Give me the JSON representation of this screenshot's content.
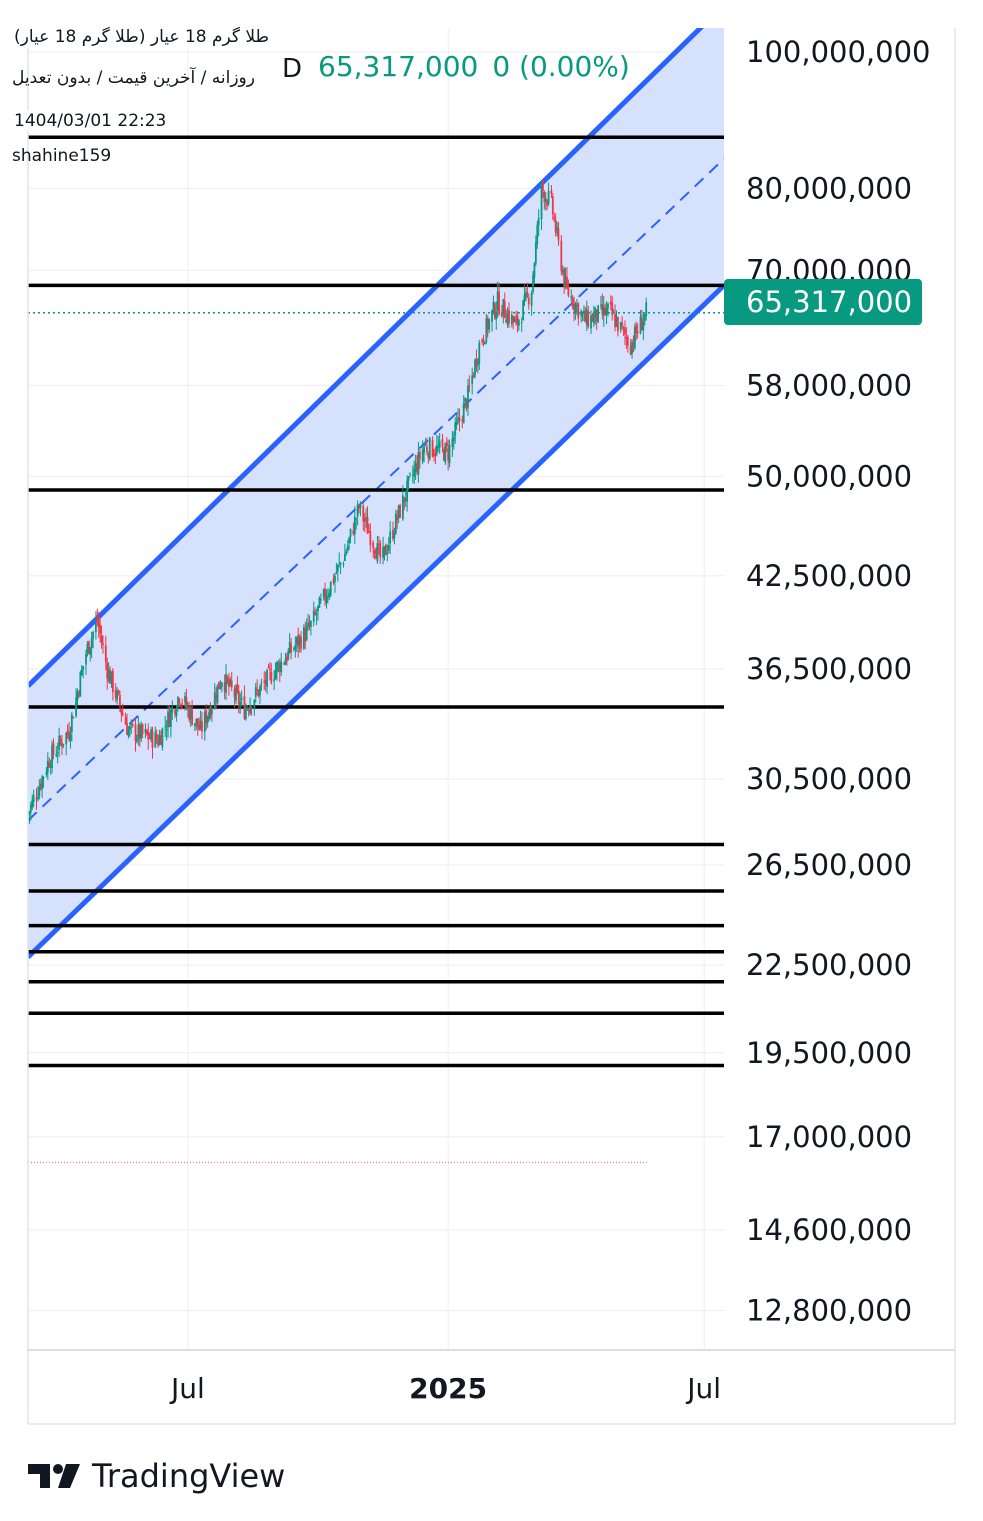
{
  "header": {
    "symbol_name": "طلا گرم 18 عیار (طلا گرم 18 عیار)",
    "chart_settings": "روزانه / آخرین قیمت / بدون تعدیل",
    "timestamp": "1404/03/01 22:23",
    "author": "shahine159",
    "interval_letter": "D",
    "last_price": "65,317,000",
    "change": "0 (0.00%)"
  },
  "last_price_tag": "65,317,000",
  "brand": {
    "name": "TradingView",
    "logo_icon": "tradingview-logo-icon"
  },
  "colors": {
    "up": "#089981",
    "down": "#f23645",
    "channel_line": "#2962ff",
    "channel_fill": "#d4e0fd",
    "level_line": "#000000",
    "grid": "#eeeef0"
  },
  "chart_data": {
    "type": "candlestick",
    "y_scale": "log",
    "ylim": [
      12000000,
      104000000
    ],
    "y_ticks": [
      "100,000,000",
      "80,000,000",
      "70,000,000",
      "58,000,000",
      "50,000,000",
      "42,500,000",
      "36,500,000",
      "30,500,000",
      "26,500,000",
      "22,500,000",
      "19,500,000",
      "17,000,000",
      "14,600,000",
      "12,800,000"
    ],
    "y_tick_values": [
      100000000,
      80000000,
      70000000,
      58000000,
      50000000,
      42500000,
      36500000,
      30500000,
      26500000,
      22500000,
      19500000,
      17000000,
      14600000,
      12800000
    ],
    "x_ticks": [
      {
        "label": "Jul",
        "date": "2024-07-01",
        "bold": false
      },
      {
        "label": "2025",
        "date": "2025-01-01",
        "bold": true
      },
      {
        "label": "Jul",
        "date": "2025-07-01",
        "bold": false
      }
    ],
    "x_range": [
      "2024-03-10",
      "2025-07-15"
    ],
    "last_price": 65317000,
    "horizontal_levels": [
      87000000,
      68300000,
      48900000,
      34300000,
      27400000,
      25400000,
      24000000,
      23000000,
      21900000,
      20800000,
      19100000
    ],
    "channel": {
      "upper": [
        [
          "2024-03-10",
          35500000
        ],
        [
          "2025-07-15",
          108000000
        ]
      ],
      "middle": [
        [
          "2024-03-10",
          28500000
        ],
        [
          "2025-07-15",
          84000000
        ]
      ],
      "lower": [
        [
          "2024-03-10",
          22800000
        ],
        [
          "2025-07-15",
          68300000
        ]
      ]
    },
    "price_path": [
      [
        "2024-03-10",
        28800000
      ],
      [
        "2024-03-25",
        31500000
      ],
      [
        "2024-04-08",
        33000000
      ],
      [
        "2024-04-20",
        37500000
      ],
      [
        "2024-04-28",
        39500000
      ],
      [
        "2024-05-05",
        36500000
      ],
      [
        "2024-05-20",
        33000000
      ],
      [
        "2024-06-10",
        32500000
      ],
      [
        "2024-06-25",
        35000000
      ],
      [
        "2024-07-10",
        33000000
      ],
      [
        "2024-07-25",
        36000000
      ],
      [
        "2024-08-10",
        34200000
      ],
      [
        "2024-09-01",
        36500000
      ],
      [
        "2024-09-25",
        39000000
      ],
      [
        "2024-10-20",
        44000000
      ],
      [
        "2024-10-30",
        47500000
      ],
      [
        "2024-11-15",
        43500000
      ],
      [
        "2024-12-05",
        49500000
      ],
      [
        "2024-12-15",
        52500000
      ],
      [
        "2025-01-01",
        52000000
      ],
      [
        "2025-01-15",
        57000000
      ],
      [
        "2025-01-23",
        62000000
      ],
      [
        "2025-02-05",
        66500000
      ],
      [
        "2025-02-18",
        64000000
      ],
      [
        "2025-03-01",
        68000000
      ],
      [
        "2025-03-08",
        80000000
      ],
      [
        "2025-03-15",
        78000000
      ],
      [
        "2025-03-25",
        68000000
      ],
      [
        "2025-04-08",
        64500000
      ],
      [
        "2025-04-25",
        65500000
      ],
      [
        "2025-05-10",
        62000000
      ],
      [
        "2025-05-21",
        65317000
      ]
    ],
    "dotted_reference": 16300000
  }
}
